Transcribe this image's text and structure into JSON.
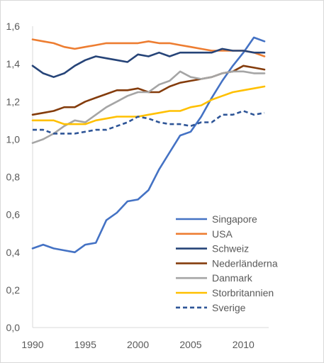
{
  "chart_data": {
    "type": "line",
    "title": "",
    "xlabel": "",
    "ylabel": "",
    "xlim": [
      1990,
      2012
    ],
    "ylim": [
      0,
      1.6
    ],
    "x_ticks": [
      1990,
      1995,
      2000,
      2005,
      2010
    ],
    "x_tick_labels": [
      "1990",
      "1995",
      "2000",
      "2005",
      "2010"
    ],
    "y_ticks": [
      0,
      0.2,
      0.4,
      0.6,
      0.8,
      1.0,
      1.2,
      1.4,
      1.6
    ],
    "y_tick_labels": [
      "0,0",
      "0,2",
      "0,4",
      "0,6",
      "0,8",
      "1,0",
      "1,2",
      "1,4",
      "1,6"
    ],
    "grid": false,
    "legend_position": "bottom-right",
    "x": [
      1990,
      1991,
      1992,
      1993,
      1994,
      1995,
      1996,
      1997,
      1998,
      1999,
      2000,
      2001,
      2002,
      2003,
      2004,
      2005,
      2006,
      2007,
      2008,
      2009,
      2010,
      2011,
      2012
    ],
    "series": [
      {
        "name": "Singapore",
        "color": "#4472C4",
        "dash": "solid",
        "values": [
          0.42,
          0.44,
          0.42,
          0.41,
          0.4,
          0.44,
          0.45,
          0.57,
          0.61,
          0.67,
          0.68,
          0.73,
          0.84,
          0.93,
          1.02,
          1.04,
          1.12,
          1.22,
          1.31,
          1.39,
          1.46,
          1.54,
          1.52
        ]
      },
      {
        "name": "USA",
        "color": "#ED7D31",
        "dash": "solid",
        "values": [
          1.53,
          1.52,
          1.51,
          1.49,
          1.48,
          1.49,
          1.5,
          1.51,
          1.51,
          1.51,
          1.51,
          1.52,
          1.51,
          1.51,
          1.5,
          1.49,
          1.48,
          1.47,
          1.47,
          1.47,
          1.47,
          1.46,
          1.44
        ]
      },
      {
        "name": "Schweiz",
        "color": "#264478",
        "dash": "solid",
        "values": [
          1.39,
          1.35,
          1.33,
          1.35,
          1.39,
          1.42,
          1.44,
          1.43,
          1.42,
          1.41,
          1.45,
          1.44,
          1.46,
          1.44,
          1.46,
          1.46,
          1.46,
          1.46,
          1.48,
          1.47,
          1.47,
          1.46,
          1.46
        ]
      },
      {
        "name": "Nederländerna",
        "color": "#843C0C",
        "dash": "solid",
        "values": [
          1.13,
          1.14,
          1.15,
          1.17,
          1.17,
          1.2,
          1.22,
          1.24,
          1.26,
          1.26,
          1.27,
          1.25,
          1.25,
          1.28,
          1.3,
          1.31,
          1.32,
          1.33,
          1.35,
          1.36,
          1.39,
          1.38,
          1.37
        ]
      },
      {
        "name": "Danmark",
        "color": "#A5A5A5",
        "dash": "solid",
        "values": [
          0.98,
          1.0,
          1.03,
          1.07,
          1.1,
          1.09,
          1.13,
          1.17,
          1.2,
          1.23,
          1.25,
          1.25,
          1.29,
          1.31,
          1.36,
          1.33,
          1.32,
          1.33,
          1.35,
          1.36,
          1.36,
          1.35,
          1.35
        ]
      },
      {
        "name": "Storbritannien",
        "color": "#FFC000",
        "dash": "solid",
        "values": [
          1.1,
          1.1,
          1.1,
          1.08,
          1.08,
          1.08,
          1.1,
          1.11,
          1.12,
          1.12,
          1.12,
          1.13,
          1.14,
          1.15,
          1.15,
          1.17,
          1.18,
          1.21,
          1.23,
          1.25,
          1.26,
          1.27,
          1.28
        ]
      },
      {
        "name": "Sverige",
        "color": "#2E5597",
        "dash": "dashed",
        "values": [
          1.05,
          1.05,
          1.03,
          1.03,
          1.03,
          1.04,
          1.05,
          1.05,
          1.07,
          1.09,
          1.12,
          1.11,
          1.09,
          1.08,
          1.08,
          1.07,
          1.09,
          1.09,
          1.13,
          1.13,
          1.15,
          1.13,
          1.14
        ]
      }
    ]
  }
}
